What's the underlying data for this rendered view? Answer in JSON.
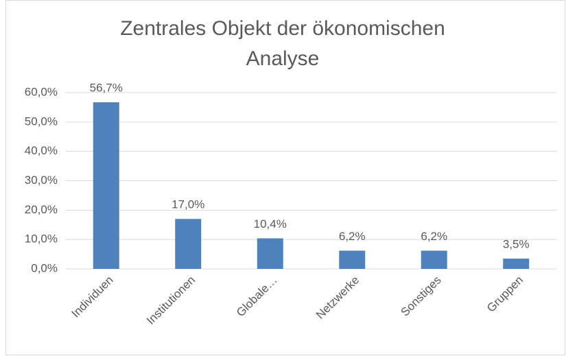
{
  "chart_data": {
    "type": "bar",
    "title": "Zentrales Objekt der ökonomischen Analyse",
    "categories": [
      "Individuen",
      "Institutionen",
      "Globale…",
      "Netzwerke",
      "Sonstiges",
      "Gruppen"
    ],
    "values": [
      56.7,
      17.0,
      10.4,
      6.2,
      6.2,
      3.5
    ],
    "value_labels": [
      "56,7%",
      "17,0%",
      "10,4%",
      "6,2%",
      "6,2%",
      "3,5%"
    ],
    "color": "#4f81bd",
    "ylim": [
      0,
      60
    ],
    "yticks": [
      {
        "value": 0,
        "label": "0,0%"
      },
      {
        "value": 10,
        "label": "10,0%"
      },
      {
        "value": 20,
        "label": "20,0%"
      },
      {
        "value": 30,
        "label": "30,0%"
      },
      {
        "value": 40,
        "label": "40,0%"
      },
      {
        "value": 50,
        "label": "50,0%"
      },
      {
        "value": 60,
        "label": "60,0%"
      }
    ],
    "grid": true
  }
}
